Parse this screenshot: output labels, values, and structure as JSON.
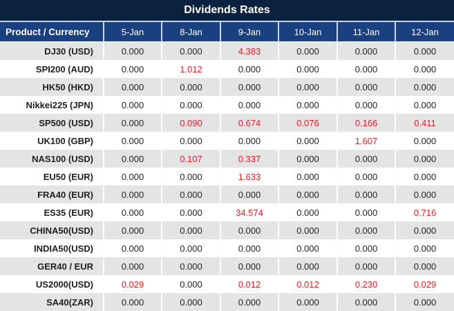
{
  "title": "Dividends Rates",
  "colors": {
    "title_bg": "#0b2140",
    "header_bg": "#1b4080",
    "row_alt_gray": "#e4e4e4",
    "highlight_red": "#ed1c24"
  },
  "table": {
    "product_header": "Product / Currency",
    "date_headers": [
      "5-Jan",
      "8-Jan",
      "9-Jan",
      "10-Jan",
      "11-Jan",
      "12-Jan"
    ],
    "rows": [
      {
        "product": "DJ30 (USD)",
        "cells": [
          {
            "v": "0.000"
          },
          {
            "v": "0.000"
          },
          {
            "v": "4.383",
            "red": true
          },
          {
            "v": "0.000"
          },
          {
            "v": "0.000"
          },
          {
            "v": "0.000"
          }
        ]
      },
      {
        "product": "SPI200 (AUD)",
        "cells": [
          {
            "v": "0.000"
          },
          {
            "v": "1.012",
            "red": true
          },
          {
            "v": "0.000"
          },
          {
            "v": "0.000"
          },
          {
            "v": "0.000"
          },
          {
            "v": "0.000"
          }
        ]
      },
      {
        "product": "HK50 (HKD)",
        "cells": [
          {
            "v": "0.000"
          },
          {
            "v": "0.000"
          },
          {
            "v": "0.000"
          },
          {
            "v": "0.000"
          },
          {
            "v": "0.000"
          },
          {
            "v": "0.000"
          }
        ]
      },
      {
        "product": "Nikkei225 (JPN)",
        "cells": [
          {
            "v": "0.000"
          },
          {
            "v": "0.000"
          },
          {
            "v": "0.000"
          },
          {
            "v": "0.000"
          },
          {
            "v": "0.000"
          },
          {
            "v": "0.000"
          }
        ]
      },
      {
        "product": "SP500 (USD)",
        "cells": [
          {
            "v": "0.000"
          },
          {
            "v": "0.090",
            "red": true
          },
          {
            "v": "0.674",
            "red": true
          },
          {
            "v": "0.076",
            "red": true
          },
          {
            "v": "0.166",
            "red": true
          },
          {
            "v": "0.411",
            "red": true
          }
        ]
      },
      {
        "product": "UK100 (GBP)",
        "cells": [
          {
            "v": "0.000"
          },
          {
            "v": "0.000"
          },
          {
            "v": "0.000"
          },
          {
            "v": "0.000"
          },
          {
            "v": "1.607",
            "red": true
          },
          {
            "v": "0.000"
          }
        ]
      },
      {
        "product": "NAS100 (USD)",
        "cells": [
          {
            "v": "0.000"
          },
          {
            "v": "0.107",
            "red": true
          },
          {
            "v": "0.337",
            "red": true
          },
          {
            "v": "0.000"
          },
          {
            "v": "0.000"
          },
          {
            "v": "0.000"
          }
        ]
      },
      {
        "product": "EU50 (EUR)",
        "cells": [
          {
            "v": "0.000"
          },
          {
            "v": "0.000"
          },
          {
            "v": "1.633",
            "red": true
          },
          {
            "v": "0.000"
          },
          {
            "v": "0.000"
          },
          {
            "v": "0.000"
          }
        ]
      },
      {
        "product": "FRA40 (EUR)",
        "cells": [
          {
            "v": "0.000"
          },
          {
            "v": "0.000"
          },
          {
            "v": "0.000"
          },
          {
            "v": "0.000"
          },
          {
            "v": "0.000"
          },
          {
            "v": "0.000"
          }
        ]
      },
      {
        "product": "ES35 (EUR)",
        "cells": [
          {
            "v": "0.000"
          },
          {
            "v": "0.000"
          },
          {
            "v": "34.574",
            "red": true
          },
          {
            "v": "0.000"
          },
          {
            "v": "0.000"
          },
          {
            "v": "0.716",
            "red": true
          }
        ]
      },
      {
        "product": "CHINA50(USD)",
        "cells": [
          {
            "v": "0.000"
          },
          {
            "v": "0.000"
          },
          {
            "v": "0.000"
          },
          {
            "v": "0.000"
          },
          {
            "v": "0.000"
          },
          {
            "v": "0.000"
          }
        ]
      },
      {
        "product": "INDIA50(USD)",
        "cells": [
          {
            "v": "0.000"
          },
          {
            "v": "0.000"
          },
          {
            "v": "0.000"
          },
          {
            "v": "0.000"
          },
          {
            "v": "0.000"
          },
          {
            "v": "0.000"
          }
        ]
      },
      {
        "product": "GER40 / EUR",
        "cells": [
          {
            "v": "0.000"
          },
          {
            "v": "0.000"
          },
          {
            "v": "0.000"
          },
          {
            "v": "0.000"
          },
          {
            "v": "0.000"
          },
          {
            "v": "0.000"
          }
        ]
      },
      {
        "product": "US2000(USD)",
        "cells": [
          {
            "v": "0.029",
            "red": true
          },
          {
            "v": "0.000"
          },
          {
            "v": "0.012",
            "red": true
          },
          {
            "v": "0.012",
            "red": true
          },
          {
            "v": "0.230",
            "red": true
          },
          {
            "v": "0.029",
            "red": true
          }
        ]
      },
      {
        "product": "SA40(ZAR)",
        "cells": [
          {
            "v": "0.000"
          },
          {
            "v": "0.000"
          },
          {
            "v": "0.000"
          },
          {
            "v": "0.000"
          },
          {
            "v": "0.000"
          },
          {
            "v": "0.000"
          }
        ]
      }
    ]
  }
}
